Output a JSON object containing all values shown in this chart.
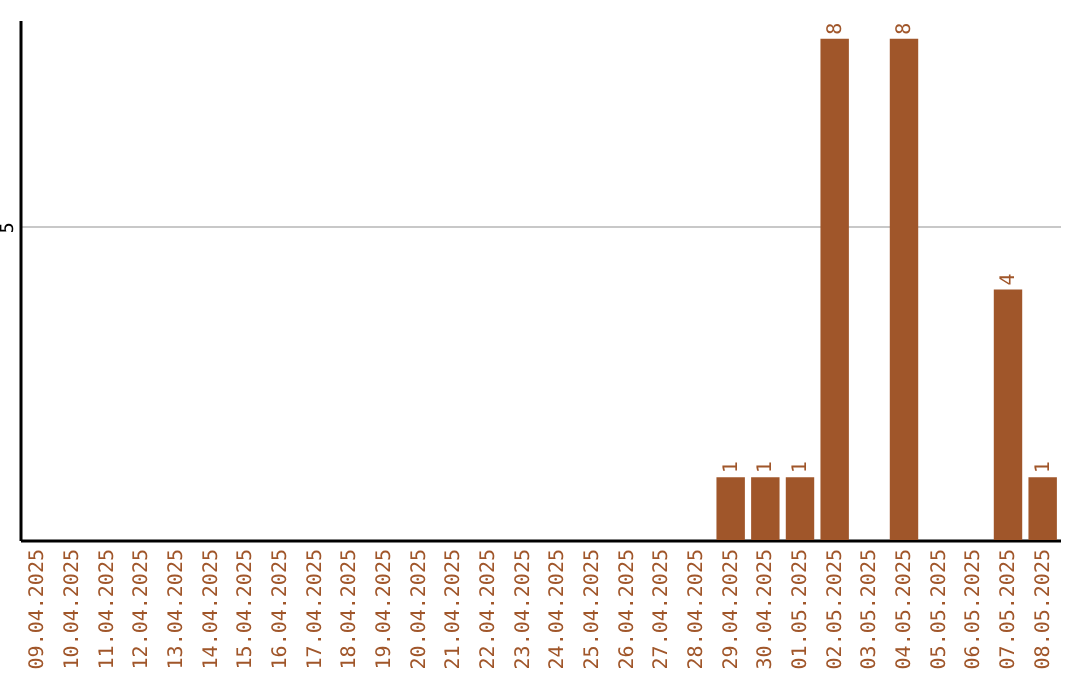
{
  "chart_data": {
    "type": "bar",
    "categories": [
      "09.04.2025",
      "10.04.2025",
      "11.04.2025",
      "12.04.2025",
      "13.04.2025",
      "14.04.2025",
      "15.04.2025",
      "16.04.2025",
      "17.04.2025",
      "18.04.2025",
      "19.04.2025",
      "20.04.2025",
      "21.04.2025",
      "22.04.2025",
      "23.04.2025",
      "24.04.2025",
      "25.04.2025",
      "26.04.2025",
      "27.04.2025",
      "28.04.2025",
      "29.04.2025",
      "30.04.2025",
      "01.05.2025",
      "02.05.2025",
      "03.05.2025",
      "04.05.2025",
      "05.05.2025",
      "06.05.2025",
      "07.05.2025",
      "08.05.2025"
    ],
    "values": [
      null,
      null,
      null,
      null,
      null,
      null,
      null,
      null,
      null,
      null,
      null,
      null,
      null,
      null,
      null,
      null,
      null,
      null,
      null,
      null,
      1,
      1,
      1,
      8,
      null,
      8,
      null,
      null,
      4,
      1
    ],
    "color": "#a0562a",
    "ylim": [
      0,
      8.3
    ],
    "yticks": [
      5
    ],
    "grid": "y",
    "data_labels": true
  }
}
